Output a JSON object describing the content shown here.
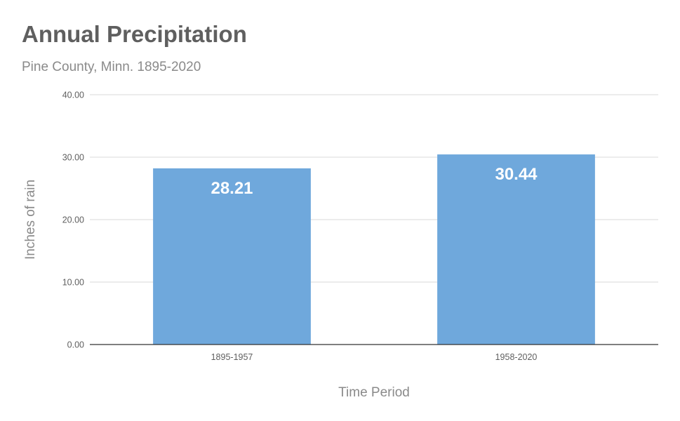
{
  "chart_data": {
    "type": "bar",
    "title": "Annual Precipitation",
    "subtitle": "Pine County, Minn. 1895-2020",
    "xlabel": "Time Period",
    "ylabel": "Inches of rain",
    "categories": [
      "1895-1957",
      "1958-2020"
    ],
    "values": [
      28.21,
      30.44
    ],
    "value_labels": [
      "28.21",
      "30.44"
    ],
    "ylim": [
      0,
      40
    ],
    "yticks": [
      0,
      10,
      20,
      30,
      40
    ],
    "ytick_labels": [
      "0.00",
      "10.00",
      "20.00",
      "30.00",
      "40.00"
    ],
    "grid": true,
    "legend": "none",
    "bar_color": "#6fa8dc",
    "grid_color": "#d9d9d9",
    "axis_color": "#333333"
  }
}
